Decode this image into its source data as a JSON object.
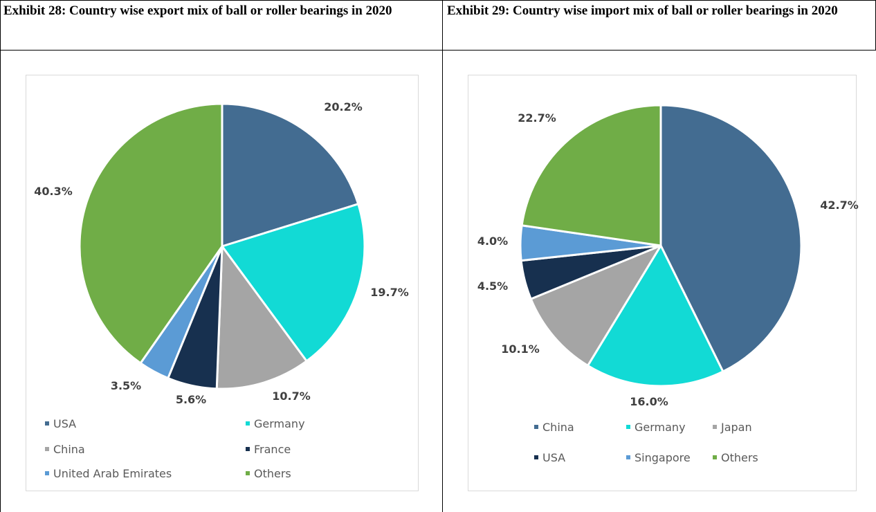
{
  "left_panel": {
    "title": "Exhibit 28: Country wise export mix of ball or roller bearings in 2020"
  },
  "right_panel": {
    "title": "Exhibit 29: Country wise import mix of ball or roller bearings in 2020"
  },
  "chart_data": [
    {
      "type": "pie",
      "title": "Exhibit 28: Country wise export mix of ball or roller bearings in 2020",
      "legend_position": "bottom",
      "slices": [
        {
          "name": "USA",
          "value": 20.2,
          "label": "20.2%",
          "color": "#436c91"
        },
        {
          "name": "Germany",
          "value": 19.7,
          "label": "19.7%",
          "color": "#12dad5"
        },
        {
          "name": "China",
          "value": 10.7,
          "label": "10.7%",
          "color": "#a5a5a5"
        },
        {
          "name": "France",
          "value": 5.6,
          "label": "5.6%",
          "color": "#17304f"
        },
        {
          "name": "United Arab Emirates",
          "value": 3.5,
          "label": "3.5%",
          "color": "#5b9bd5"
        },
        {
          "name": "Others",
          "value": 40.3,
          "label": "40.3%",
          "color": "#70ad47"
        }
      ]
    },
    {
      "type": "pie",
      "title": "Exhibit 29: Country wise import mix of ball or roller bearings in 2020",
      "legend_position": "bottom",
      "slices": [
        {
          "name": "China",
          "value": 42.7,
          "label": "42.7%",
          "color": "#436c91"
        },
        {
          "name": "Germany",
          "value": 16.0,
          "label": "16.0%",
          "color": "#12dad5"
        },
        {
          "name": "Japan",
          "value": 10.1,
          "label": "10.1%",
          "color": "#a5a5a5"
        },
        {
          "name": "USA",
          "value": 4.5,
          "label": "4.5%",
          "color": "#17304f"
        },
        {
          "name": "Singapore",
          "value": 4.0,
          "label": "4.0%",
          "color": "#5b9bd5"
        },
        {
          "name": "Others",
          "value": 22.7,
          "label": "22.7%",
          "color": "#70ad47"
        }
      ]
    }
  ]
}
